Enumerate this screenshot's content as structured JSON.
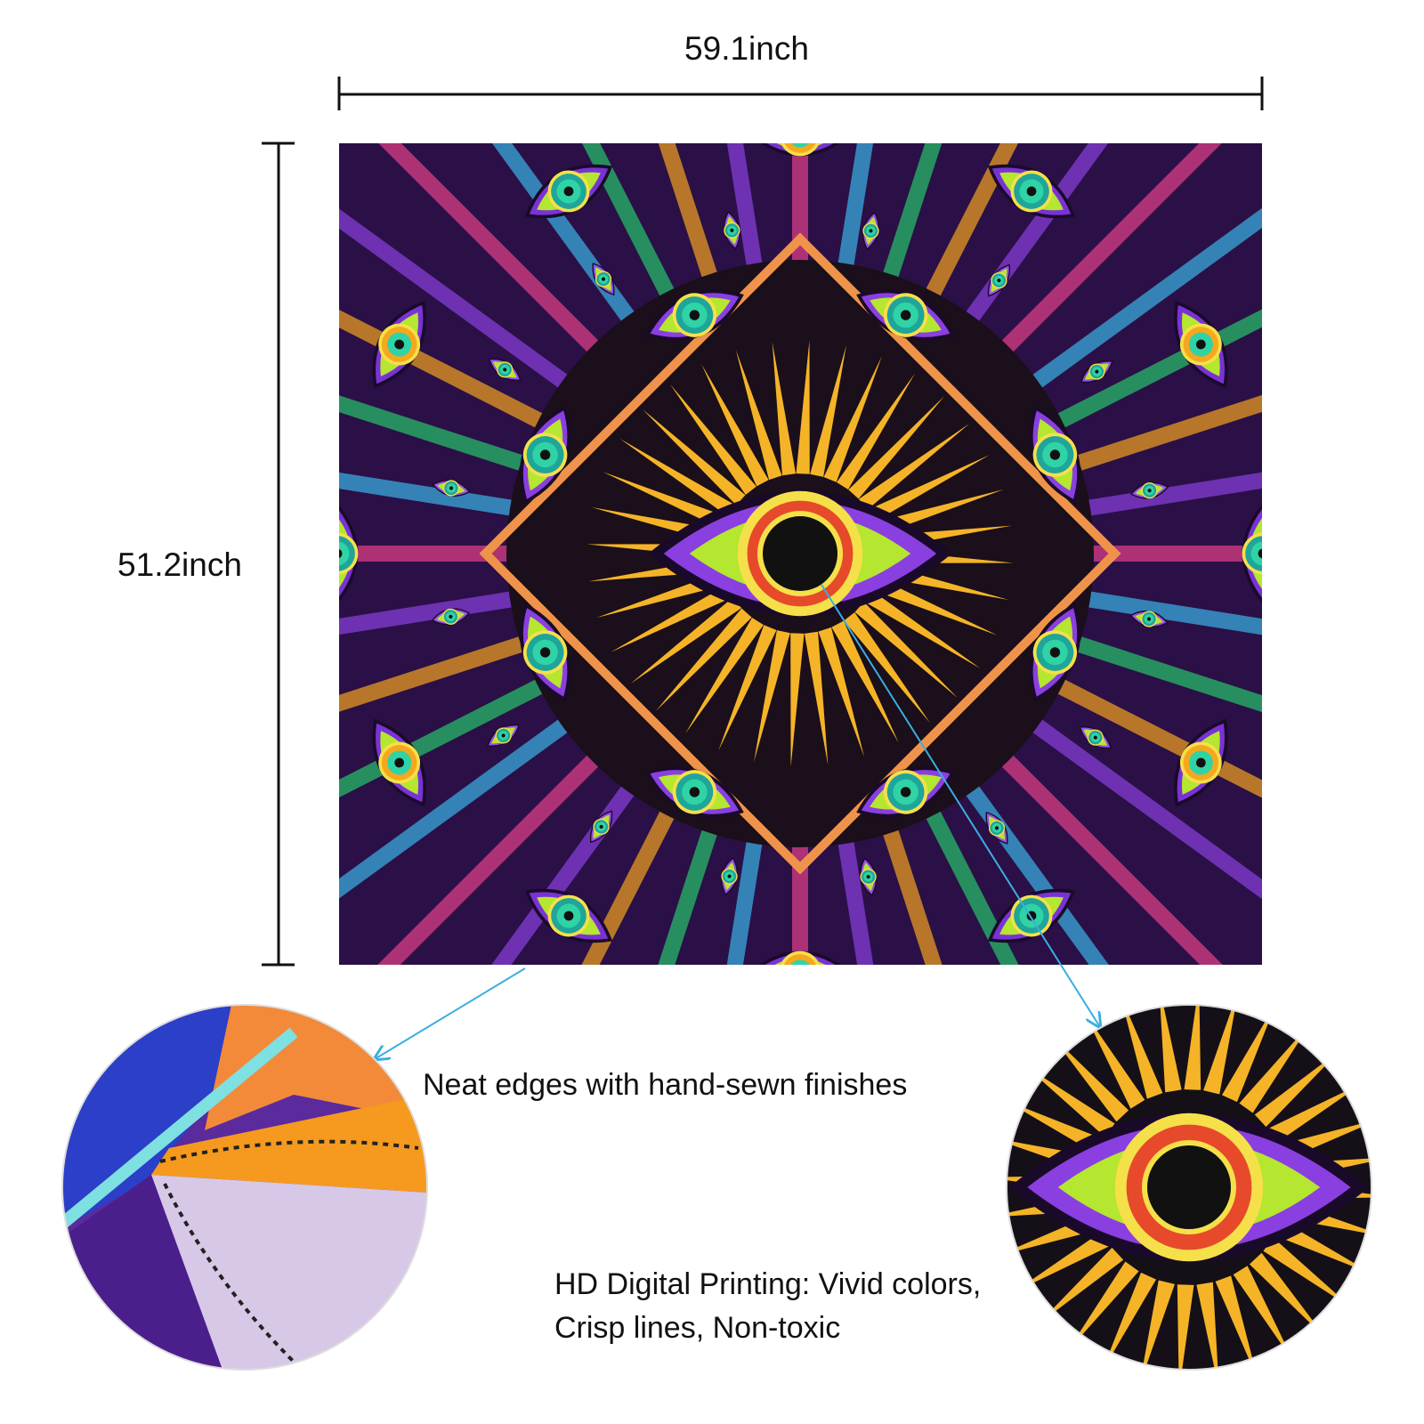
{
  "dimensions": {
    "width": "59.1inch",
    "height": "51.2inch"
  },
  "callouts": {
    "edges": "Neat edges with hand-sewn finishes",
    "printing": [
      "HD Digital Printing: Vivid colors,",
      "Crisp lines, Non-toxic"
    ]
  }
}
